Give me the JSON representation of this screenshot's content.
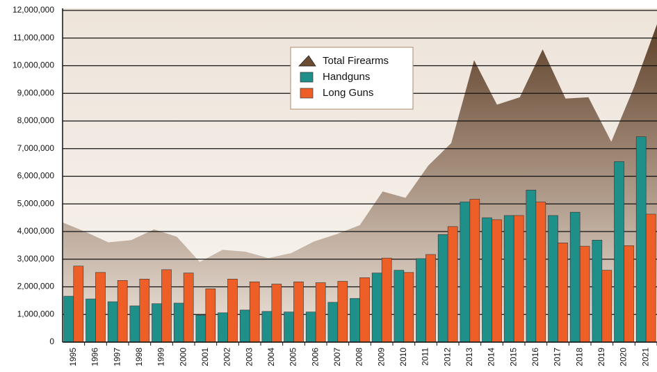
{
  "chart_data": {
    "type": "bar",
    "categories": [
      "1995",
      "1996",
      "1997",
      "1998",
      "1999",
      "2000",
      "2001",
      "2002",
      "2003",
      "2004",
      "2005",
      "2006",
      "2007",
      "2008",
      "2009",
      "2010",
      "2011",
      "2012",
      "2013",
      "2014",
      "2015",
      "2016",
      "2017",
      "2018",
      "2019",
      "2020",
      "2021"
    ],
    "series": [
      {
        "name": "Total Firearms",
        "mark": "area",
        "color": "#6b4b31",
        "values": [
          4330000.0,
          3990000.0,
          3610000.0,
          3690000.0,
          4080000.0,
          3810000.0,
          2900000.0,
          3340000.0,
          3270000.0,
          3040000.0,
          3220000.0,
          3640000.0,
          3910000.0,
          4230000.0,
          5450000.0,
          5220000.0,
          6390000.0,
          7200000.0,
          10200000.0,
          8590000.0,
          8860000.0,
          10590000.0,
          8810000.0,
          8860000.0,
          7250000.0,
          9230000.0,
          11500000.0
        ]
      },
      {
        "name": "Handguns",
        "mark": "bar",
        "color": "#1f8f8a",
        "values": [
          1660000.0,
          1560000.0,
          1460000.0,
          1310000.0,
          1390000.0,
          1410000.0,
          970000.0,
          1060000.0,
          1160000.0,
          1110000.0,
          1090000.0,
          1090000.0,
          1440000.0,
          1580000.0,
          2500000.0,
          2600000.0,
          3020000.0,
          3890000.0,
          5070000.0,
          4500000.0,
          4580000.0,
          5500000.0,
          4580000.0,
          4700000.0,
          3690000.0,
          6530000.0,
          7430000.0
        ]
      },
      {
        "name": "Long Guns",
        "mark": "bar",
        "color": "#ee5f28",
        "values": [
          2750000.0,
          2520000.0,
          2230000.0,
          2280000.0,
          2620000.0,
          2500000.0,
          1930000.0,
          2280000.0,
          2180000.0,
          2100000.0,
          2180000.0,
          2150000.0,
          2200000.0,
          2330000.0,
          3040000.0,
          2520000.0,
          3170000.0,
          4180000.0,
          5170000.0,
          4430000.0,
          4580000.0,
          5070000.0,
          3590000.0,
          3470000.0,
          2600000.0,
          3490000.0,
          4630000.0
        ]
      }
    ],
    "ylim": [
      0,
      12000000
    ],
    "yticks": [
      0,
      {
        "value": 1000000,
        "label": "1,000,000"
      },
      {
        "value": 2000000,
        "label": "2,000,000"
      },
      {
        "value": 3000000,
        "label": "3,000,000"
      },
      {
        "value": 4000000,
        "label": "4,000,000"
      },
      {
        "value": 5000000,
        "label": "5,000,000"
      },
      {
        "value": 6000000,
        "label": "6,000,000"
      },
      {
        "value": 7000000,
        "label": "7,000,000"
      },
      {
        "value": 8000000,
        "label": "8,000,000"
      },
      {
        "value": 9000000,
        "label": "9,000,000"
      },
      {
        "value": 10000000,
        "label": "10,000,000"
      },
      {
        "value": 11000000,
        "label": "11,000,000"
      },
      {
        "value": 12000000,
        "label": "12,000,000"
      }
    ],
    "grid": true,
    "legend": "top"
  }
}
